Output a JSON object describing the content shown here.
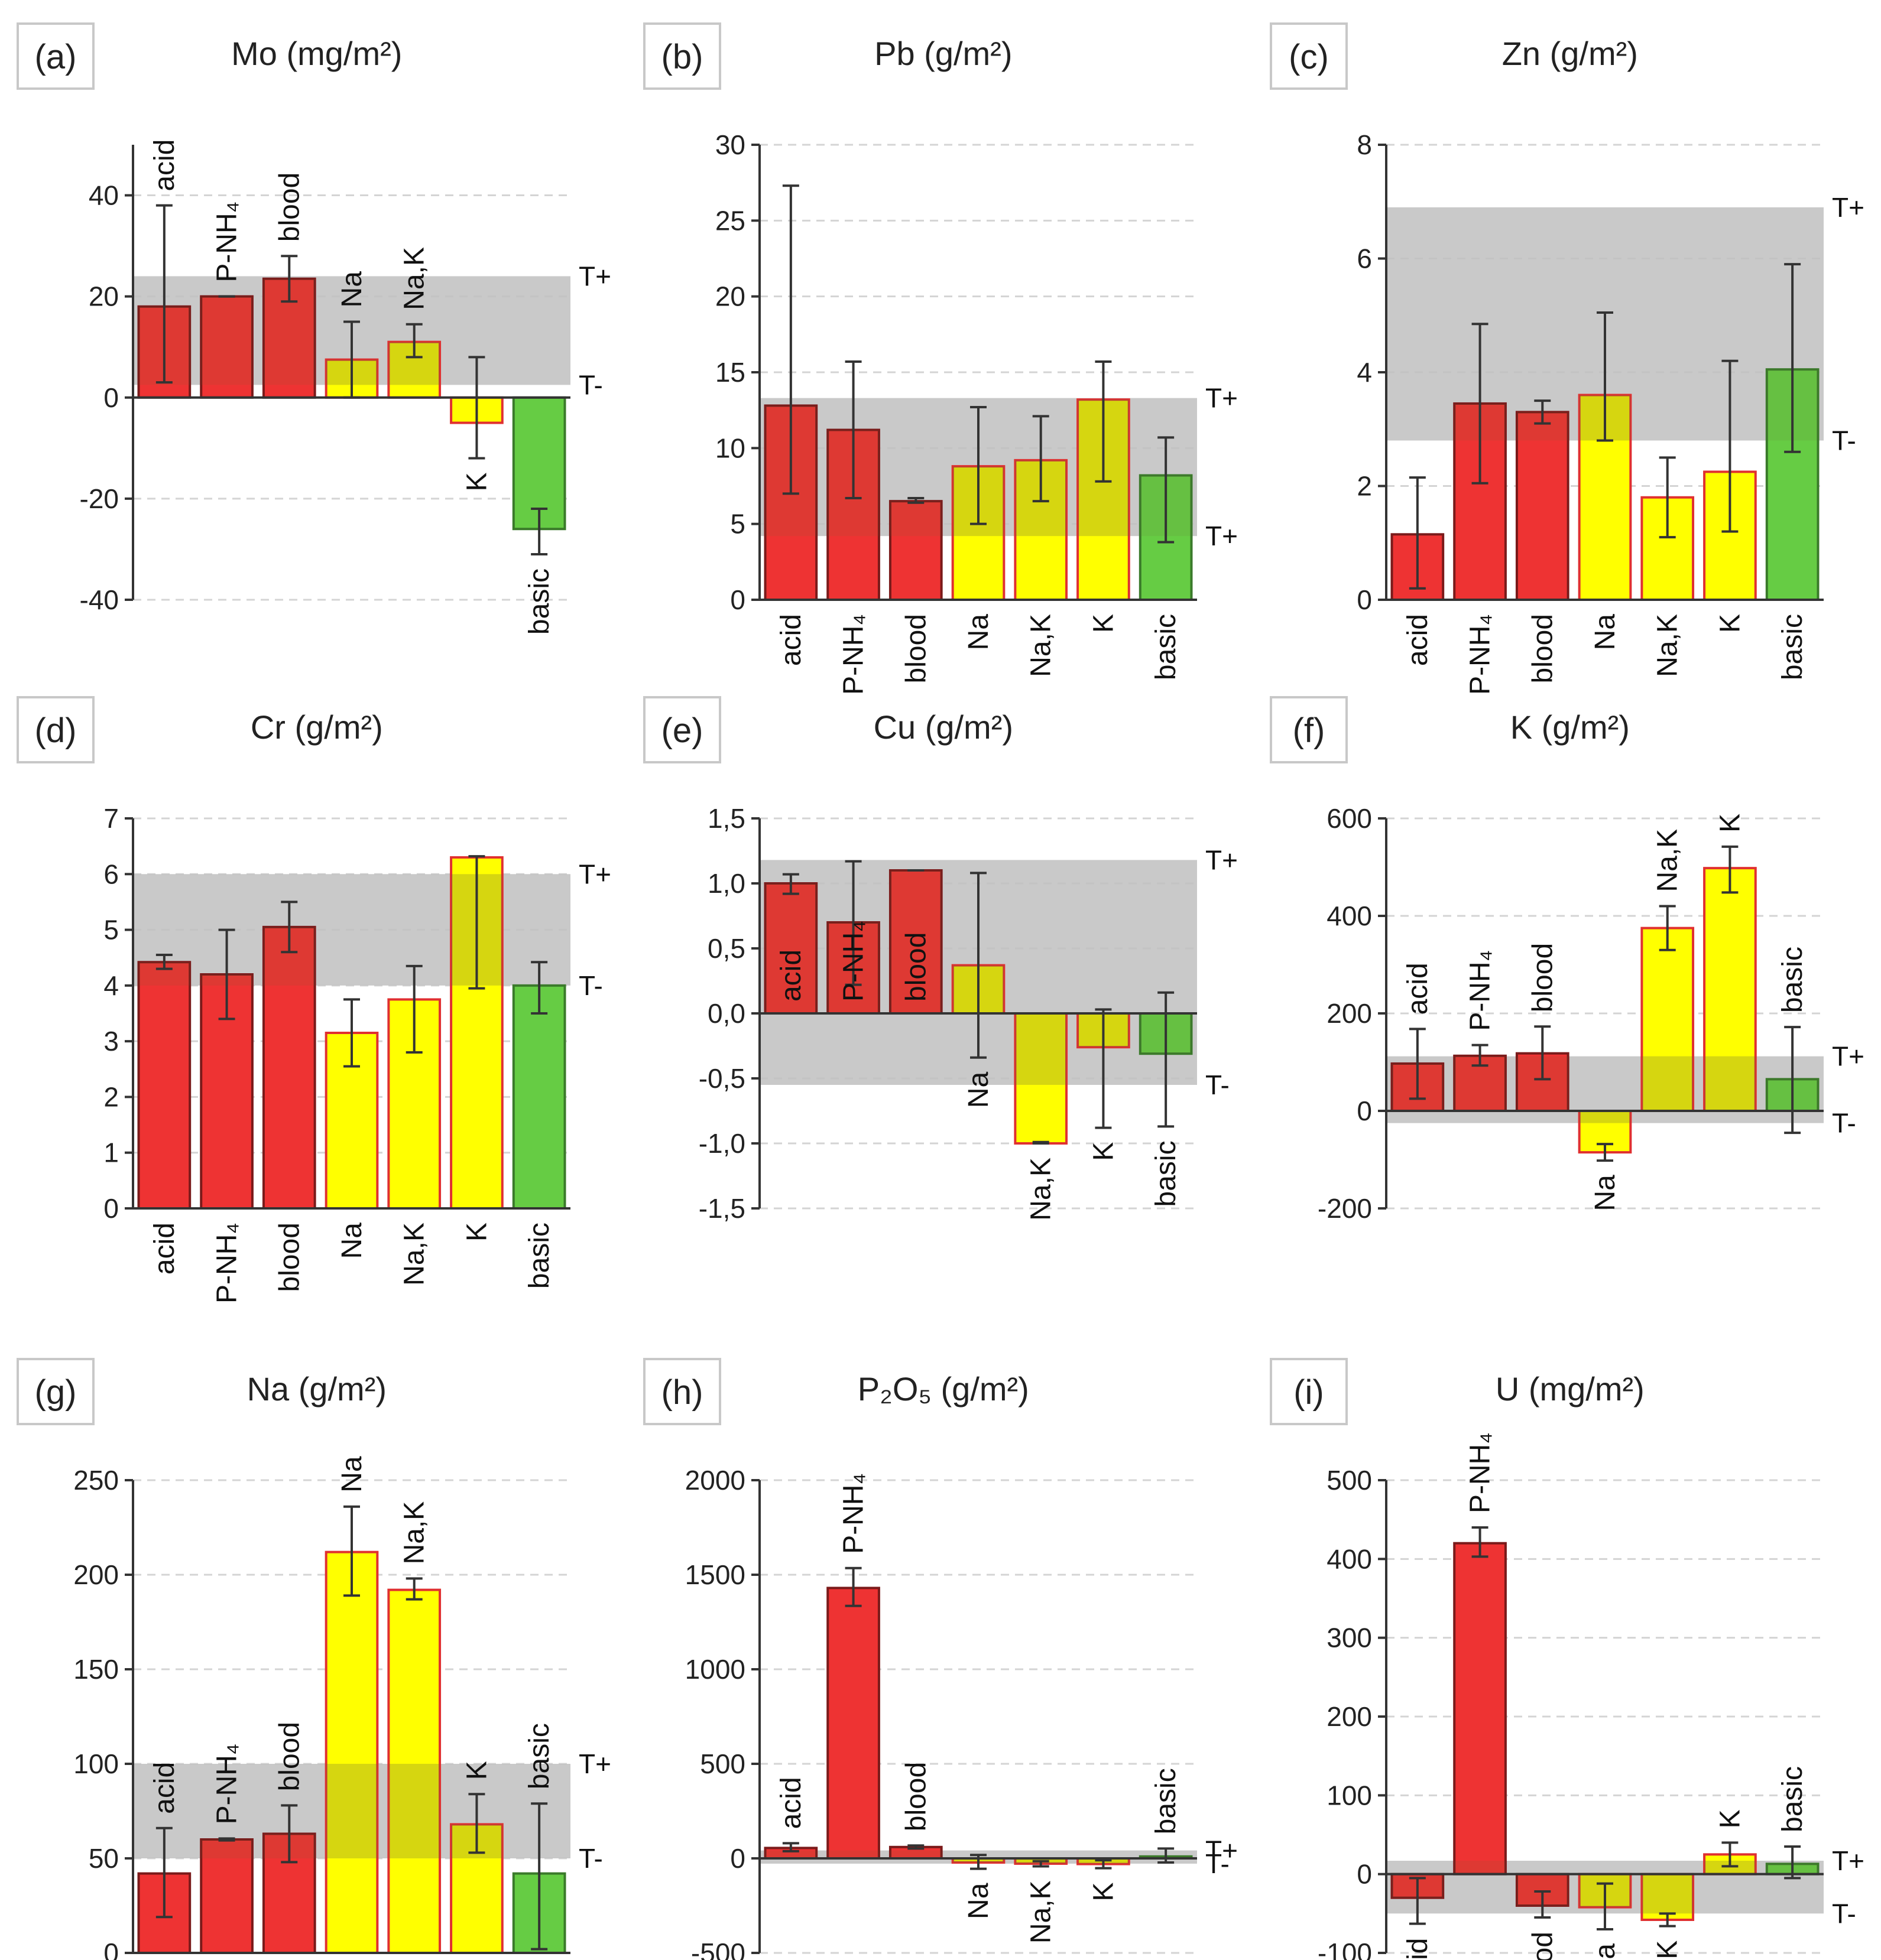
{
  "colors": {
    "red": "#ee3333",
    "red_edge": "#7a1a1a",
    "yellow": "#ffff00",
    "yellow_edge": "#e03030",
    "green": "#66cc44",
    "green_edge": "#3a7a2a",
    "band": "#bfbfbf"
  },
  "chart_data": [
    {
      "panel": "(a)",
      "title": "Mo (mg/m²)",
      "type": "bar",
      "ylim": [
        -40,
        50
      ],
      "yticks": [
        -40,
        -20,
        0,
        20,
        40
      ],
      "ytick_labels": [
        "-40",
        "-20",
        "0",
        "20",
        "40"
      ],
      "band": [
        2.5,
        24
      ],
      "t_plus": "T+",
      "t_minus": "T-",
      "categories": [
        "acid",
        "P-NH₄",
        "blood",
        "Na",
        "Na,K",
        "K",
        "basic"
      ],
      "values": [
        18,
        20,
        23.5,
        7.5,
        11,
        -5,
        -26
      ],
      "err_low": [
        3,
        20,
        19,
        0,
        8,
        -12,
        -31
      ],
      "err_high": [
        38,
        20,
        28,
        15,
        14.5,
        8,
        -22
      ],
      "colors": [
        "red",
        "red",
        "red",
        "yellow",
        "yellow",
        "yellow",
        "green"
      ],
      "label_pos": "auto"
    },
    {
      "panel": "(b)",
      "title": "Pb (g/m²)",
      "type": "bar",
      "ylim": [
        0,
        30
      ],
      "yticks": [
        0,
        5,
        10,
        15,
        20,
        25,
        30
      ],
      "ytick_labels": [
        "0",
        "5",
        "10",
        "15",
        "20",
        "25",
        "30"
      ],
      "band": [
        4.2,
        13.3
      ],
      "t_plus": "T+",
      "t_minus": "T+",
      "categories": [
        "acid",
        "P-NH₄",
        "blood",
        "Na",
        "Na,K",
        "K",
        "basic"
      ],
      "values": [
        12.8,
        11.2,
        6.5,
        8.8,
        9.2,
        13.2,
        8.2
      ],
      "err_low": [
        7,
        6.7,
        6.4,
        5,
        6.5,
        7.8,
        3.8
      ],
      "err_high": [
        27.3,
        15.7,
        6.7,
        12.7,
        12.1,
        15.7,
        10.7
      ],
      "colors": [
        "red",
        "red",
        "red",
        "yellow",
        "yellow",
        "yellow",
        "green"
      ],
      "label_pos": "below"
    },
    {
      "panel": "(c)",
      "title": "Zn (g/m²)",
      "type": "bar",
      "ylim": [
        0,
        8
      ],
      "yticks": [
        0,
        2,
        4,
        6,
        8
      ],
      "ytick_labels": [
        "0",
        "2",
        "4",
        "6",
        "8"
      ],
      "band": [
        2.8,
        6.9
      ],
      "t_plus": "T+",
      "t_minus": "T-",
      "categories": [
        "acid",
        "P-NH₄",
        "blood",
        "Na",
        "Na,K",
        "K",
        "basic"
      ],
      "values": [
        1.15,
        3.45,
        3.3,
        3.6,
        1.8,
        2.25,
        4.05
      ],
      "err_low": [
        0.2,
        2.05,
        3.1,
        2.8,
        1.1,
        1.2,
        2.6
      ],
      "err_high": [
        2.15,
        4.85,
        3.5,
        5.05,
        2.5,
        4.2,
        5.9
      ],
      "colors": [
        "red",
        "red",
        "red",
        "yellow",
        "yellow",
        "yellow",
        "green"
      ],
      "label_pos": "below"
    },
    {
      "panel": "(d)",
      "title": "Cr (g/m²)",
      "type": "bar",
      "ylim": [
        0,
        7
      ],
      "yticks": [
        0,
        1,
        2,
        3,
        4,
        5,
        6,
        7
      ],
      "ytick_labels": [
        "0",
        "1",
        "2",
        "3",
        "4",
        "5",
        "6",
        "7"
      ],
      "band": [
        4,
        6
      ],
      "t_plus": "T+",
      "t_minus": "T-",
      "categories": [
        "acid",
        "P-NH₄",
        "blood",
        "Na",
        "Na,K",
        "K",
        "basic"
      ],
      "values": [
        4.42,
        4.2,
        5.05,
        3.15,
        3.75,
        6.3,
        4.0
      ],
      "err_low": [
        4.3,
        3.4,
        4.6,
        2.55,
        2.8,
        3.95,
        3.5
      ],
      "err_high": [
        4.55,
        5.0,
        5.5,
        3.75,
        4.35,
        6.32,
        4.42
      ],
      "colors": [
        "red",
        "red",
        "red",
        "yellow",
        "yellow",
        "yellow",
        "green"
      ],
      "label_pos": "below"
    },
    {
      "panel": "(e)",
      "title": "Cu (g/m²)",
      "type": "bar",
      "ylim": [
        -1.5,
        1.5
      ],
      "yticks": [
        -1.5,
        -1.0,
        -0.5,
        0.0,
        0.5,
        1.0,
        1.5
      ],
      "ytick_labels": [
        "-1,5",
        "-1,0",
        "-0,5",
        "0,0",
        "0,5",
        "1,0",
        "1,5"
      ],
      "band": [
        -0.55,
        1.18
      ],
      "t_plus": "T+",
      "t_minus": "T-",
      "categories": [
        "acid",
        "P-NH₄",
        "blood",
        "Na",
        "Na,K",
        "K",
        "basic"
      ],
      "values": [
        1.0,
        0.7,
        1.1,
        0.37,
        -1.0,
        -0.26,
        -0.31
      ],
      "err_low": [
        0.92,
        0.22,
        1.1,
        -0.34,
        -1.0,
        -0.88,
        -0.87
      ],
      "err_high": [
        1.07,
        1.17,
        1.1,
        1.08,
        -0.99,
        0.03,
        0.16
      ],
      "colors": [
        "red",
        "red",
        "red",
        "yellow",
        "yellow",
        "yellow",
        "green"
      ],
      "label_pos": "mixed_e"
    },
    {
      "panel": "(f)",
      "title": "K (g/m²)",
      "type": "bar",
      "ylim": [
        -200,
        600
      ],
      "yticks": [
        -200,
        0,
        200,
        400,
        600
      ],
      "ytick_labels": [
        "-200",
        "0",
        "200",
        "400",
        "600"
      ],
      "band": [
        -25,
        112
      ],
      "t_plus": "T+",
      "t_minus": "T-",
      "categories": [
        "acid",
        "P-NH₄",
        "blood",
        "Na",
        "Na,K",
        "K",
        "basic"
      ],
      "values": [
        97,
        113,
        118,
        -85,
        375,
        498,
        65
      ],
      "err_low": [
        25,
        93,
        65,
        -102,
        330,
        448,
        -45
      ],
      "err_high": [
        168,
        135,
        173,
        -68,
        420,
        542,
        172
      ],
      "colors": [
        "red",
        "red",
        "red",
        "yellow",
        "yellow",
        "yellow",
        "green"
      ],
      "label_pos": "auto"
    },
    {
      "panel": "(g)",
      "title": "Na (g/m²)",
      "type": "bar",
      "ylim": [
        0,
        250
      ],
      "yticks": [
        0,
        50,
        100,
        150,
        200,
        250
      ],
      "ytick_labels": [
        "0",
        "50",
        "100",
        "150",
        "200",
        "250"
      ],
      "band": [
        50,
        100
      ],
      "t_plus": "T+",
      "t_minus": "T-",
      "categories": [
        "acid",
        "P-NH₄",
        "blood",
        "Na",
        "Na,K",
        "K",
        "basic"
      ],
      "values": [
        42,
        60,
        63,
        212,
        192,
        68,
        42
      ],
      "err_low": [
        19,
        59.5,
        48,
        189,
        187,
        53,
        2
      ],
      "err_high": [
        66,
        60.5,
        78,
        236,
        198,
        84,
        79
      ],
      "colors": [
        "red",
        "red",
        "red",
        "yellow",
        "yellow",
        "yellow",
        "green"
      ],
      "label_pos": "auto"
    },
    {
      "panel": "(h)",
      "title": "P₂O₅ (g/m²)",
      "type": "bar",
      "ylim": [
        -500,
        2000
      ],
      "yticks": [
        -500,
        0,
        500,
        1000,
        1500,
        2000
      ],
      "ytick_labels": [
        "-500",
        "0",
        "500",
        "1000",
        "1500",
        "2000"
      ],
      "band": [
        -28,
        42
      ],
      "t_plus": "T+",
      "t_minus": "T-",
      "categories": [
        "acid",
        "P-NH₄",
        "blood",
        "Na",
        "Na,K",
        "K",
        "basic"
      ],
      "values": [
        55,
        1430,
        60,
        -22,
        -28,
        -30,
        10
      ],
      "err_low": [
        38,
        1335,
        52,
        -55,
        -42,
        -52,
        -22
      ],
      "err_high": [
        80,
        1535,
        68,
        18,
        -15,
        -10,
        52
      ],
      "colors": [
        "red",
        "red",
        "red",
        "yellow",
        "yellow",
        "yellow",
        "green"
      ],
      "label_pos": "auto"
    },
    {
      "panel": "(i)",
      "title": "U (mg/m²)",
      "type": "bar",
      "ylim": [
        -100,
        500
      ],
      "yticks": [
        -100,
        0,
        100,
        200,
        300,
        400,
        500
      ],
      "ytick_labels": [
        "-100",
        "0",
        "100",
        "200",
        "300",
        "400",
        "500"
      ],
      "band": [
        -50,
        17
      ],
      "t_plus": "T+",
      "t_minus": "T-",
      "categories": [
        "acid",
        "P-NH₄",
        "blood",
        "Na",
        "Na,K",
        "K",
        "basic"
      ],
      "values": [
        -30,
        420,
        -40,
        -42,
        -58,
        25,
        13
      ],
      "err_low": [
        -63,
        403,
        -55,
        -70,
        -66,
        10,
        -5
      ],
      "err_high": [
        -5,
        440,
        -22,
        -12,
        -50,
        40,
        35
      ],
      "colors": [
        "red",
        "red",
        "red",
        "yellow",
        "yellow",
        "yellow",
        "green"
      ],
      "label_pos": "auto"
    }
  ]
}
